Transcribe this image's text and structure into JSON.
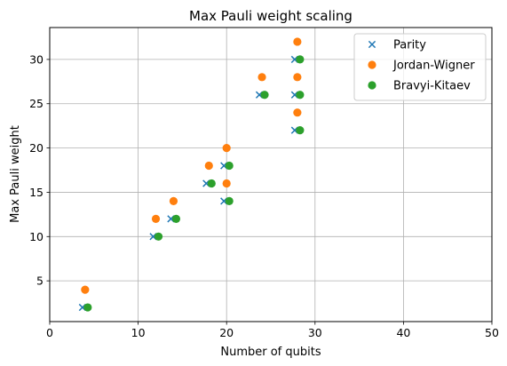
{
  "chart_data": {
    "type": "scatter",
    "title": "Max Pauli weight scaling",
    "xlabel": "Number of qubits",
    "ylabel": "Max Pauli weight",
    "xlim": [
      0,
      50
    ],
    "ylim": [
      0.4,
      33.6
    ],
    "x_ticks": [
      0,
      10,
      20,
      30,
      40,
      50
    ],
    "y_ticks": [
      5,
      10,
      15,
      20,
      25,
      30
    ],
    "grid": true,
    "legend_position": "top-right",
    "series": [
      {
        "name": "Parity",
        "marker": "x",
        "color": "#1f77b4",
        "points": [
          [
            3.7,
            2
          ],
          [
            11.7,
            10
          ],
          [
            13.7,
            12
          ],
          [
            17.7,
            16
          ],
          [
            19.7,
            14
          ],
          [
            19.7,
            18
          ],
          [
            23.7,
            26
          ],
          [
            27.7,
            22
          ],
          [
            27.7,
            26
          ],
          [
            27.7,
            30
          ]
        ]
      },
      {
        "name": "Jordan-Wigner",
        "marker": "circle",
        "color": "#ff7f0e",
        "points": [
          [
            4,
            4
          ],
          [
            12,
            12
          ],
          [
            14,
            14
          ],
          [
            18,
            18
          ],
          [
            20,
            16
          ],
          [
            20,
            20
          ],
          [
            24,
            28
          ],
          [
            28,
            24
          ],
          [
            28,
            28
          ],
          [
            28,
            32
          ]
        ]
      },
      {
        "name": "Bravyi-Kitaev",
        "marker": "circle",
        "color": "#2ca02c",
        "points": [
          [
            4.3,
            2
          ],
          [
            12.3,
            10
          ],
          [
            14.3,
            12
          ],
          [
            18.3,
            16
          ],
          [
            20.3,
            14
          ],
          [
            20.3,
            18
          ],
          [
            24.3,
            26
          ],
          [
            28.3,
            22
          ],
          [
            28.3,
            26
          ],
          [
            28.3,
            30
          ]
        ]
      }
    ]
  }
}
